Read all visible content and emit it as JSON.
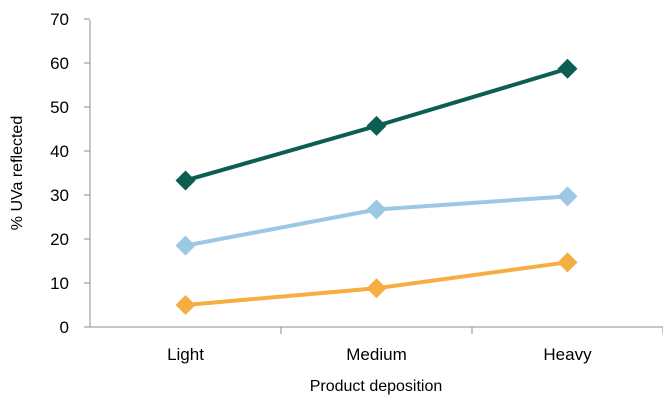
{
  "chart_data": {
    "type": "line",
    "title": "",
    "xlabel": "Product deposition",
    "ylabel": "% UVa reflected",
    "categories": [
      "Light",
      "Medium",
      "Heavy"
    ],
    "ylim": [
      0,
      70
    ],
    "yticks": [
      0,
      10,
      20,
      30,
      40,
      50,
      60,
      70
    ],
    "grid": false,
    "legend": "none",
    "marker": "diamond",
    "series": [
      {
        "color": "#0d5e52",
        "values": [
          33.3,
          45.7,
          58.7
        ]
      },
      {
        "color": "#9cc8e6",
        "values": [
          18.5,
          26.7,
          29.7
        ]
      },
      {
        "color": "#f5ae42",
        "values": [
          5,
          8.8,
          14.7
        ]
      }
    ]
  }
}
